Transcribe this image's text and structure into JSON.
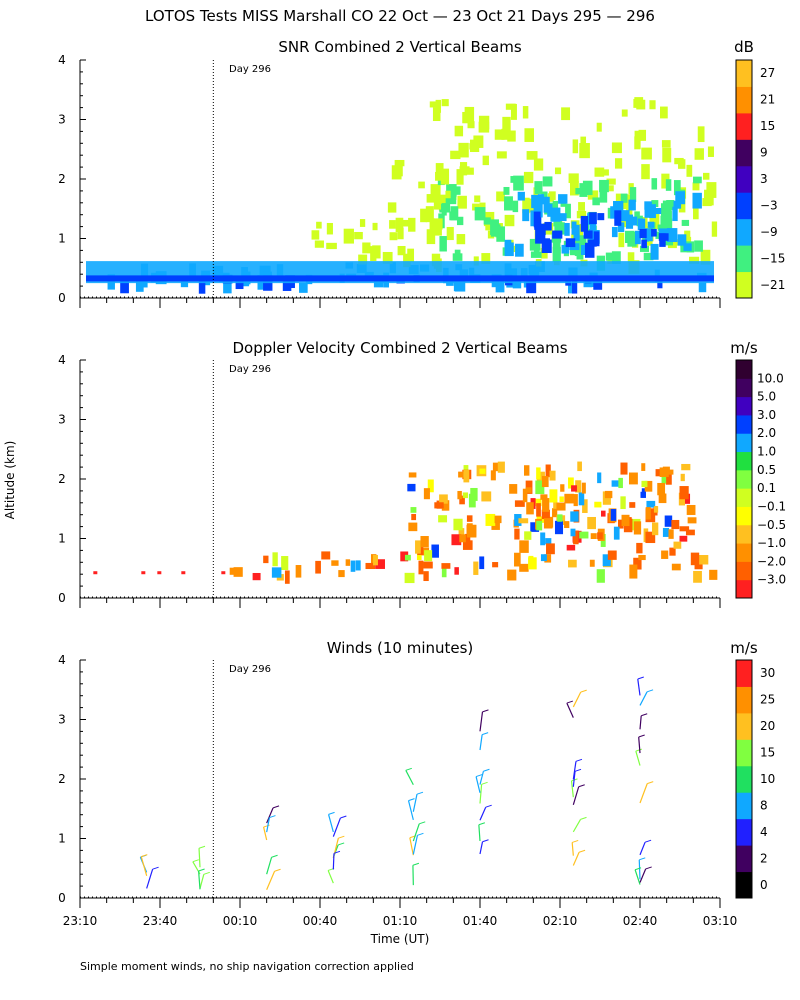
{
  "figure_title": "LOTOS Tests MISS Marshall CO  22 Oct — 23 Oct 21 Days 295 — 296",
  "footer_note": "Simple moment winds, no ship navigation correction applied",
  "y_axis_label": "Altitude (km)",
  "x_axis_label": "Time (UT)",
  "x_tick_labels": [
    "23:10",
    "23:40",
    "00:10",
    "00:40",
    "01:10",
    "01:40",
    "02:10",
    "02:40",
    "03:10"
  ],
  "y_tick_labels": [
    "0",
    "1",
    "2",
    "3",
    "4"
  ],
  "day_marker_label": "Day 296",
  "colors": {
    "snr": [
      "#d0ff20",
      "#40f080",
      "#10a8ff",
      "#0040ff",
      "#4000c0",
      "#400060",
      "#ff2020",
      "#ff9000",
      "#ffc020"
    ],
    "doppler": [
      "#ff2020",
      "#ff6000",
      "#ff9000",
      "#ffc020",
      "#ffff00",
      "#d0ff20",
      "#80ff40",
      "#20e040",
      "#10a8ff",
      "#0040ff",
      "#4000c0",
      "#400060",
      "#300030"
    ],
    "winds": [
      "#000000",
      "#400060",
      "#2020ff",
      "#10a8ff",
      "#20e060",
      "#80ff40",
      "#ffc020",
      "#ff9000",
      "#ff2020"
    ]
  },
  "chart_data": [
    {
      "type": "heatmap",
      "title": "SNR Combined 2 Vertical Beams",
      "xlabel": "Time (UT)",
      "ylabel": "Altitude (km)",
      "x_range_hours": [
        -0.8333,
        3.1667
      ],
      "ylim": [
        0,
        4
      ],
      "day_marker_hour": 0.0,
      "colorbar": {
        "unit": "dB",
        "levels": [
          -21,
          -15,
          -9,
          -3,
          3,
          9,
          15,
          21,
          27
        ]
      },
      "regions": [
        {
          "t0": -0.83,
          "t1": 3.13,
          "a0": 0.25,
          "a1": 0.62,
          "level": -9
        },
        {
          "t0": -0.83,
          "t1": 3.13,
          "a0": 0.3,
          "a1": 0.4,
          "level": -3
        },
        {
          "t0": 1.05,
          "t1": 3.13,
          "a0": 0.6,
          "a1": 2.3,
          "level": -21
        },
        {
          "t0": 1.4,
          "t1": 3.05,
          "a0": 0.7,
          "a1": 2.1,
          "level": -15
        },
        {
          "t0": 1.8,
          "t1": 3.0,
          "a0": 0.8,
          "a1": 1.8,
          "level": -9
        },
        {
          "t0": 2.0,
          "t1": 2.9,
          "a0": 0.9,
          "a1": 1.5,
          "level": -3
        },
        {
          "t0": 1.35,
          "t1": 3.13,
          "a0": 2.3,
          "a1": 3.4,
          "level": -21
        },
        {
          "t0": 0.6,
          "t1": 1.1,
          "a0": 0.6,
          "a1": 1.4,
          "level": -21
        },
        {
          "t0": 1.1,
          "t1": 1.55,
          "a0": 1.2,
          "a1": 2.5,
          "level": -21
        }
      ]
    },
    {
      "type": "heatmap",
      "title": "Doppler Velocity Combined 2 Vertical Beams",
      "xlabel": "Time (UT)",
      "ylabel": "Altitude (km)",
      "x_range_hours": [
        -0.8333,
        3.1667
      ],
      "ylim": [
        0,
        4
      ],
      "day_marker_hour": 0.0,
      "colorbar": {
        "unit": "m/s",
        "levels": [
          -3.0,
          -2.0,
          -1.0,
          -0.5,
          -0.1,
          0.1,
          0.5,
          1.0,
          2.0,
          3.0,
          5.0,
          10.0
        ]
      },
      "regions": [
        {
          "t0": 1.2,
          "t1": 3.13,
          "a0": 0.45,
          "a1": 0.75,
          "level": -1.0
        },
        {
          "t0": 1.5,
          "t1": 3.0,
          "a0": 0.75,
          "a1": 2.3,
          "level": -0.5
        },
        {
          "t0": 1.9,
          "t1": 2.8,
          "a0": 1.0,
          "a1": 2.0,
          "level": -1.0
        },
        {
          "t0": 1.2,
          "t1": 1.6,
          "a0": 0.8,
          "a1": 2.2,
          "level": -0.5
        },
        {
          "t0": 0.1,
          "t1": 1.2,
          "a0": 0.4,
          "a1": 0.8,
          "level": -1.0
        }
      ]
    },
    {
      "type": "scatter",
      "title": "Winds (10 minutes)",
      "xlabel": "Time (UT)",
      "ylabel": "Altitude (km)",
      "x_range_hours": [
        -0.8333,
        3.1667
      ],
      "ylim": [
        0,
        4
      ],
      "day_marker_hour": 0.0,
      "colorbar": {
        "unit": "m/s",
        "levels": [
          0,
          2,
          4,
          8,
          10,
          15,
          20,
          25,
          30
        ]
      },
      "profile_times_hours": [
        -0.4167,
        -0.0833,
        0.3333,
        0.75,
        1.25,
        1.6667,
        2.25,
        2.6667
      ]
    }
  ]
}
